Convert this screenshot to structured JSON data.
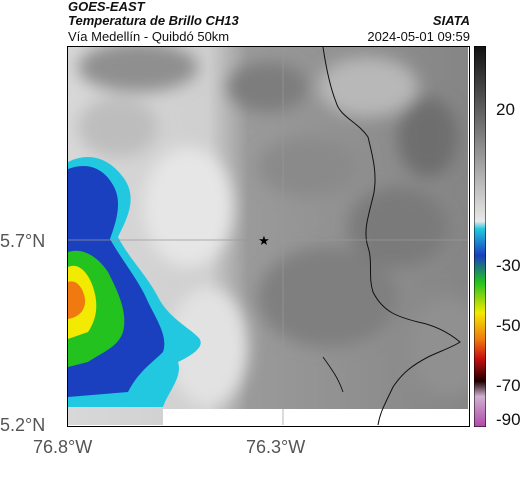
{
  "header": {
    "source": "GOES-EAST",
    "product": "Temperatura de Brillo CH13",
    "route": "Vía Medellín - Quibdó 50km",
    "agency": "SIATA",
    "timestamp": "2024-05-01 09:59"
  },
  "map": {
    "lat_ticks": [
      "5.7°N",
      "5.2°N"
    ],
    "lon_ticks": [
      "76.8°W",
      "76.3°W"
    ],
    "marker_icon": "star-icon"
  },
  "colorbar": {
    "labels": [
      "20",
      "-30",
      "-50",
      "-70",
      "-90"
    ],
    "colors": {
      "warm_top": "#111111",
      "gray_mid": "#9a9a9a",
      "cyan": "#22c8e0",
      "blue": "#1a3fbf",
      "green": "#23c21f",
      "yellow": "#f2ea00",
      "orange": "#f07a10",
      "red": "#c81010",
      "magenta": "#b048a8"
    }
  }
}
